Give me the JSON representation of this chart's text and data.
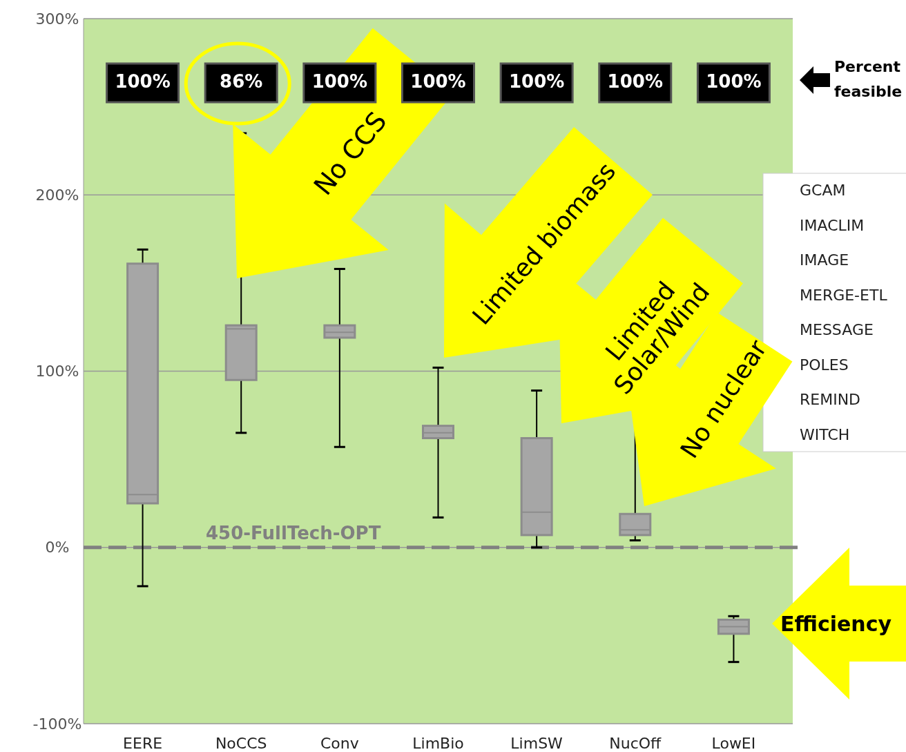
{
  "chart_data": {
    "type": "box",
    "categories": [
      "EERE",
      "NoCCS",
      "Conv",
      "LimBio",
      "LimSW",
      "NucOff",
      "LowEI"
    ],
    "boxes": [
      {
        "low": -22,
        "q1": 25,
        "median": 30,
        "q3": 161,
        "high": 169
      },
      {
        "low": 65,
        "q1": 95,
        "median": 124,
        "q3": 126,
        "high": 235
      },
      {
        "low": 57,
        "q1": 119,
        "median": 122,
        "q3": 126,
        "high": 158
      },
      {
        "low": 17,
        "q1": 62,
        "median": 65,
        "q3": 69,
        "high": 102
      },
      {
        "low": 0,
        "q1": 7,
        "median": 20,
        "q3": 62,
        "high": 89
      },
      {
        "low": 4,
        "q1": 7,
        "median": 10,
        "q3": 19,
        "high": 80
      },
      {
        "low": -65,
        "q1": -49,
        "median": -45,
        "q3": -41,
        "high": -39
      }
    ],
    "color": "#a6a6a6",
    "ylim": [
      -100,
      300
    ],
    "yticks": [
      {
        "value": -100,
        "label": "-100%"
      },
      {
        "value": 0,
        "label": "0%"
      },
      {
        "value": 100,
        "label": "100%"
      },
      {
        "value": 200,
        "label": "200%"
      },
      {
        "value": 300,
        "label": "300%"
      }
    ],
    "grid": "y",
    "ref_lines": [
      {
        "axis": "y",
        "value": 0,
        "label": "450-FullTech-OPT",
        "color": "#808080",
        "line_style": "dashed"
      }
    ],
    "annotations": [
      "100%",
      "86%",
      "100%",
      "100%",
      "100%",
      "100%",
      "100%",
      "Percent feasible",
      "No CCS",
      "Limited biomass",
      "Limited Solar/Wind",
      "No nuclear",
      "Efficiency",
      "GCAM",
      "IMACLIM",
      "IMAGE",
      "MERGE-ETL",
      "MESSAGE",
      "POLES",
      "REMIND",
      "WITCH"
    ]
  }
}
